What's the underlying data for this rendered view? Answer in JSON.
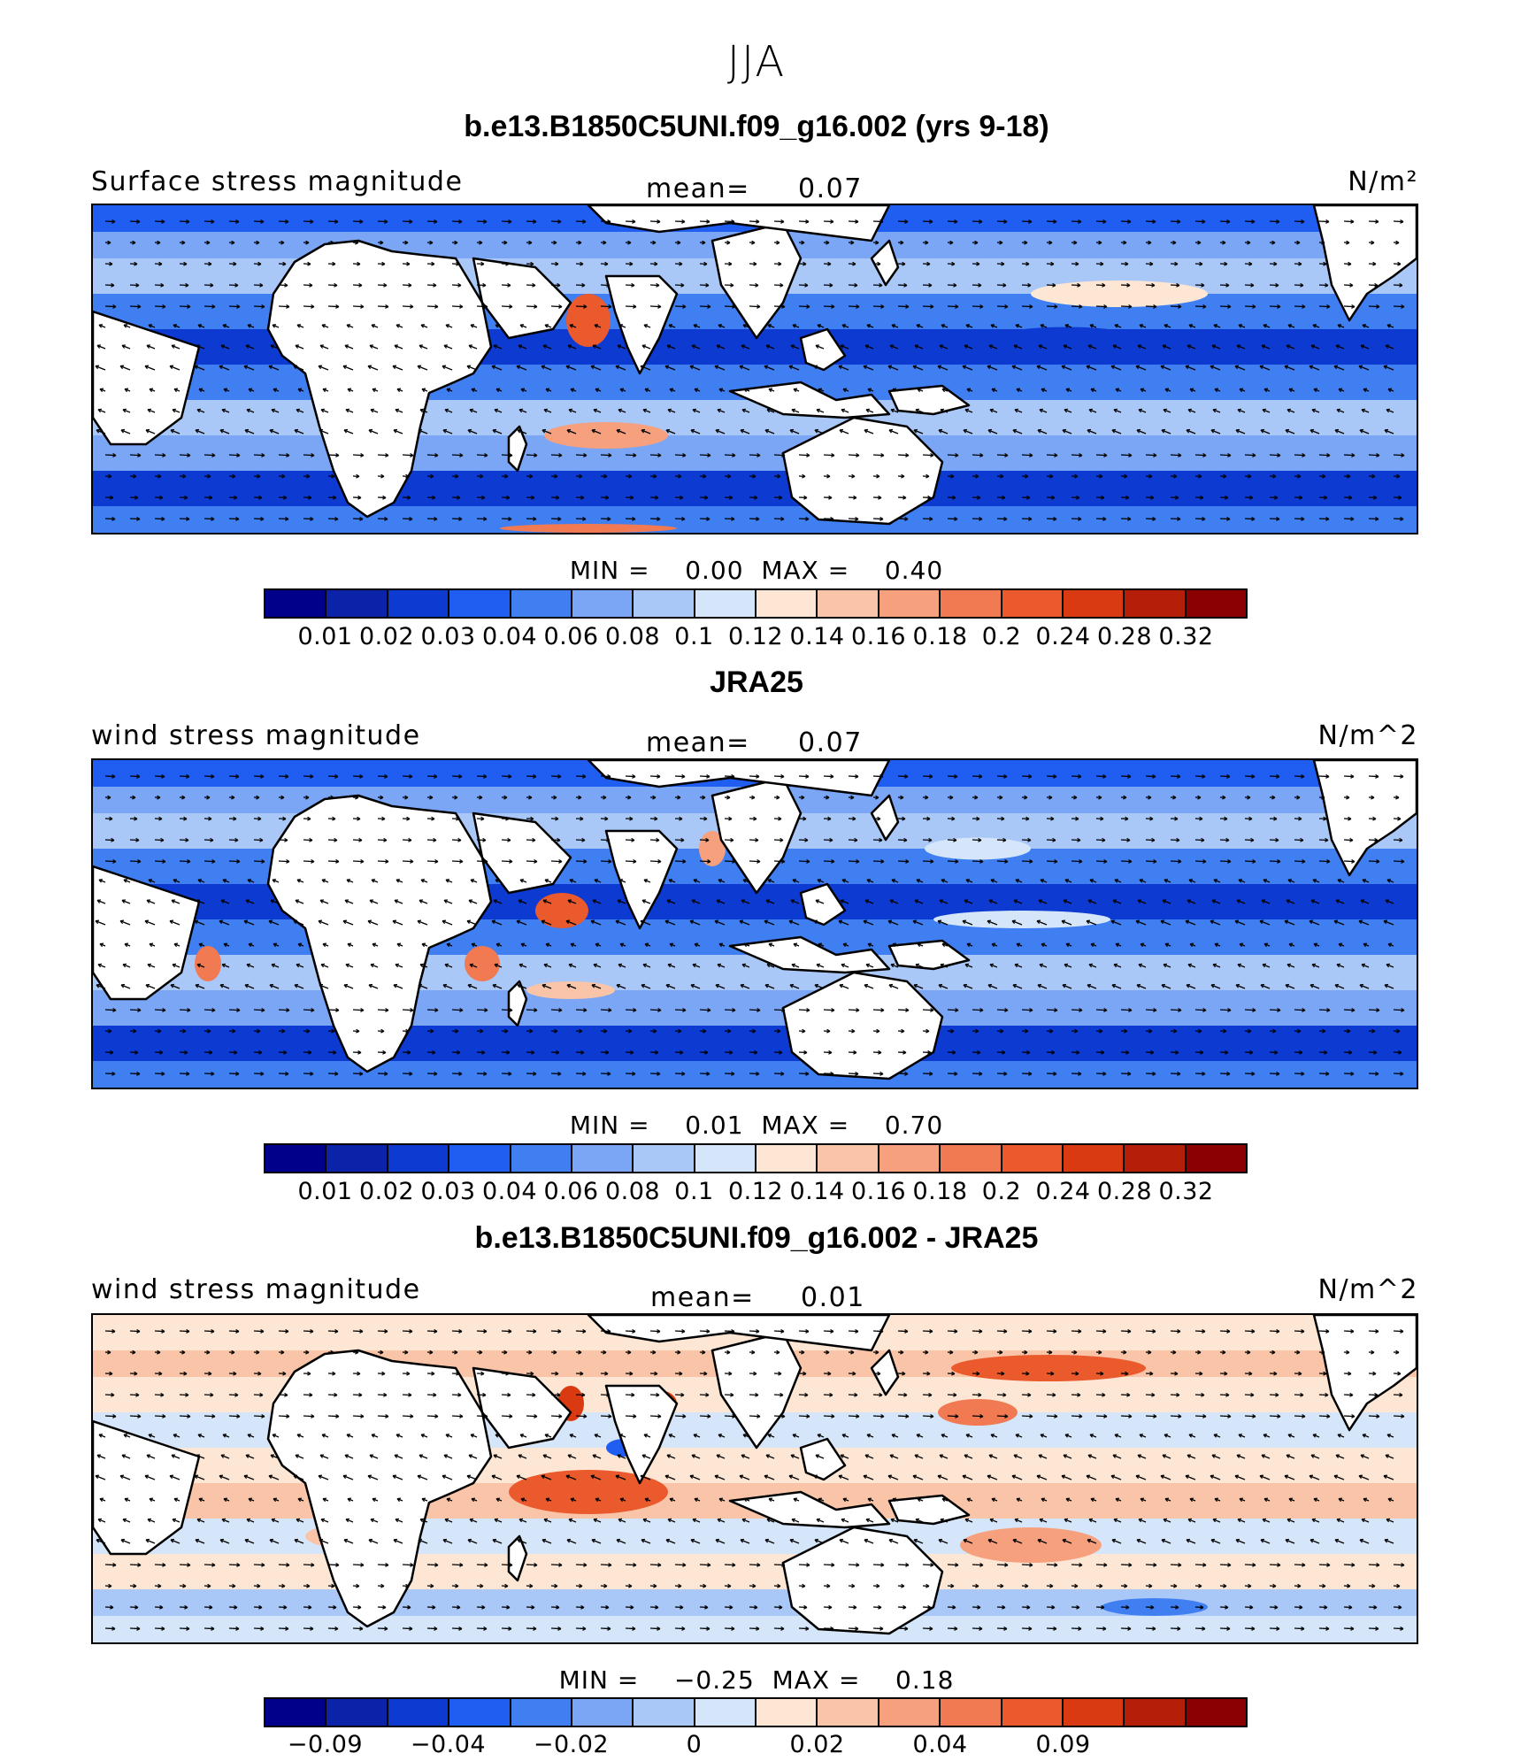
{
  "figure": {
    "title": "JJA"
  },
  "panels": [
    {
      "id": "model",
      "title": "b.e13.B1850C5UNI.f09_g16.002 (yrs 9-18)",
      "left_label": "Surface stress magnitude",
      "mean_label": "mean=",
      "mean_value": "0.07",
      "units": "N/m²",
      "min_label": "MIN =",
      "min_value": "0.00",
      "max_label": "MAX =",
      "max_value": "0.40",
      "colorbar_ticks": [
        "0.01",
        "0.02",
        "0.03",
        "0.04",
        "0.06",
        "0.08",
        "0.1",
        "0.12",
        "0.14",
        "0.16",
        "0.18",
        "0.2",
        "0.24",
        "0.28",
        "0.32"
      ]
    },
    {
      "id": "obs",
      "title": "JRA25",
      "left_label": "wind stress magnitude",
      "mean_label": "mean=",
      "mean_value": "0.07",
      "units": "N/m^2",
      "min_label": "MIN =",
      "min_value": "0.01",
      "max_label": "MAX =",
      "max_value": "0.70",
      "colorbar_ticks": [
        "0.01",
        "0.02",
        "0.03",
        "0.04",
        "0.06",
        "0.08",
        "0.1",
        "0.12",
        "0.14",
        "0.16",
        "0.18",
        "0.2",
        "0.24",
        "0.28",
        "0.32"
      ]
    },
    {
      "id": "diff",
      "title": "b.e13.B1850C5UNI.f09_g16.002 - JRA25",
      "left_label": "wind stress magnitude",
      "mean_label": "mean=",
      "mean_value": "0.01",
      "units": "N/m^2",
      "min_label": "MIN =",
      "min_value": "−0.25",
      "max_label": "MAX =",
      "max_value": "0.18",
      "colorbar_ticks": [
        "−0.09",
        "",
        "−0.04",
        "",
        "−0.02",
        "",
        "0",
        "",
        "0.02",
        "",
        "0.04",
        "",
        "0.09",
        ""
      ]
    }
  ],
  "colors": {
    "palette": [
      "#00008b",
      "#0a23a8",
      "#0d3bd1",
      "#1f5ef0",
      "#3f7ff2",
      "#7aa6f5",
      "#a9c7f7",
      "#d6e6fa",
      "#fde6d4",
      "#f9c4a8",
      "#f6a07e",
      "#f17a52",
      "#ea5a2c",
      "#d93a12",
      "#b51f0a",
      "#8b0000"
    ],
    "land": "#ffffff"
  },
  "chart_data": [
    {
      "type": "heatmap",
      "title": "b.e13.B1850C5UNI.f09_g16.002 (yrs 9-18)",
      "subtitle": "Surface stress magnitude",
      "units": "N/m²",
      "mean": 0.07,
      "min": 0.0,
      "max": 0.4,
      "contour_levels": [
        0.01,
        0.02,
        0.03,
        0.04,
        0.06,
        0.08,
        0.1,
        0.12,
        0.14,
        0.16,
        0.18,
        0.2,
        0.24,
        0.28,
        0.32
      ],
      "overlay": "wind stress vectors"
    },
    {
      "type": "heatmap",
      "title": "JRA25",
      "subtitle": "wind stress magnitude",
      "units": "N/m^2",
      "mean": 0.07,
      "min": 0.01,
      "max": 0.7,
      "contour_levels": [
        0.01,
        0.02,
        0.03,
        0.04,
        0.06,
        0.08,
        0.1,
        0.12,
        0.14,
        0.16,
        0.18,
        0.2,
        0.24,
        0.28,
        0.32
      ],
      "overlay": "wind stress vectors"
    },
    {
      "type": "heatmap",
      "title": "b.e13.B1850C5UNI.f09_g16.002 - JRA25",
      "subtitle": "wind stress magnitude",
      "units": "N/m^2",
      "mean": 0.01,
      "min": -0.25,
      "max": 0.18,
      "contour_levels_labeled": [
        -0.09,
        -0.04,
        -0.02,
        0,
        0.02,
        0.04,
        0.09
      ],
      "overlay": "wind stress difference vectors"
    }
  ]
}
